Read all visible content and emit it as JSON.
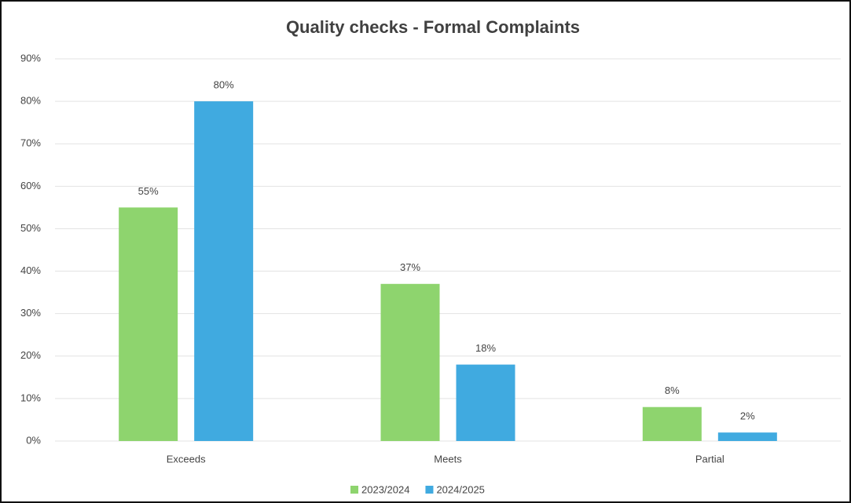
{
  "chart_data": {
    "type": "bar",
    "title": "Quality checks - Formal Complaints",
    "categories": [
      "Exceeds",
      "Meets",
      "Partial"
    ],
    "series": [
      {
        "name": "2023/2024",
        "color": "#8ed46e",
        "values": [
          55,
          37,
          8
        ],
        "value_labels": [
          "55%",
          "37%",
          "8%"
        ]
      },
      {
        "name": "2024/2025",
        "color": "#40aae0",
        "values": [
          80,
          18,
          2
        ],
        "value_labels": [
          "80%",
          "18%",
          "2%"
        ]
      }
    ],
    "ylim": [
      0,
      90
    ],
    "yticks": [
      {
        "value": 0,
        "label": "0%"
      },
      {
        "value": 10,
        "label": "10%"
      },
      {
        "value": 20,
        "label": "20%"
      },
      {
        "value": 30,
        "label": "30%"
      },
      {
        "value": 40,
        "label": "40%"
      },
      {
        "value": 50,
        "label": "50%"
      },
      {
        "value": 60,
        "label": "60%"
      },
      {
        "value": 70,
        "label": "70%"
      },
      {
        "value": 80,
        "label": "80%"
      },
      {
        "value": 90,
        "label": "90%"
      }
    ],
    "grid": true,
    "legend": "bottom"
  }
}
